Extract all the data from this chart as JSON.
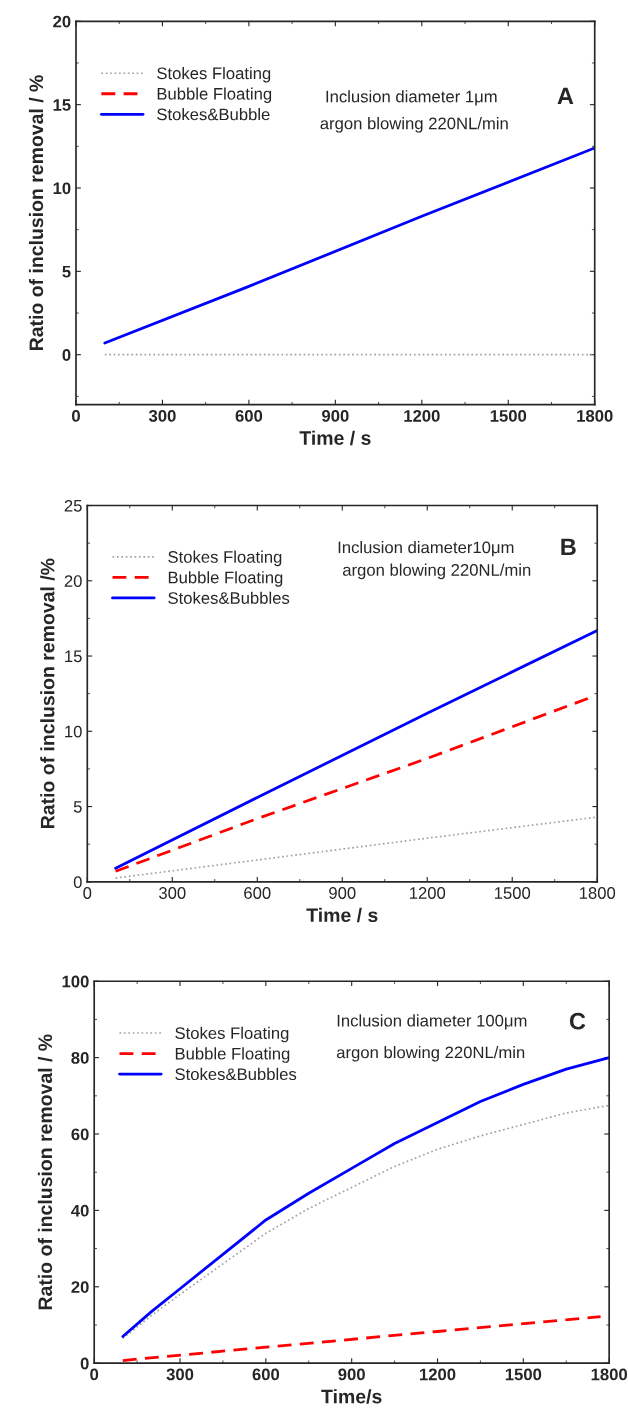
{
  "chart_data": [
    {
      "type": "line",
      "xlabel": "Time / s",
      "ylabel": "Ratio of inclusion removal / %",
      "xlim": [
        0,
        1800
      ],
      "xticks": [
        0,
        300,
        600,
        900,
        1200,
        1500,
        1800
      ],
      "ylim": [
        -3,
        20
      ],
      "yticks": [
        0,
        5,
        10,
        15,
        20
      ],
      "grid": false,
      "legend": "top left",
      "x": [
        100,
        600,
        1200,
        1800
      ],
      "series": [
        {
          "name": "Stokes Floating",
          "color": "#a0a0a0",
          "line_style": "dotted",
          "values": [
            0,
            0,
            0,
            0
          ]
        },
        {
          "name": "Bubble Floating",
          "color": "#ff0000",
          "line_style": "dashed",
          "values": [
            null,
            null,
            null,
            null
          ]
        },
        {
          "name": "Stokes&Bubble",
          "color": "#0000ff",
          "line_style": "solid",
          "values": [
            0.7,
            4.1,
            8.3,
            12.4
          ]
        }
      ],
      "annotations": [
        "Inclusion diameter 1μm",
        "argon blowing 220NL/min",
        "A"
      ]
    },
    {
      "type": "line",
      "xlabel": "Time / s",
      "ylabel": "Ratio of inclusion removal /%",
      "xlim": [
        0,
        1800
      ],
      "xticks": [
        0,
        300,
        600,
        900,
        1200,
        1500,
        1800
      ],
      "ylim": [
        0,
        25
      ],
      "yticks": [
        0,
        5,
        10,
        15,
        20,
        25
      ],
      "grid": false,
      "legend": "top left",
      "series": [
        {
          "name": "Stokes Floating",
          "color": "#a0a0a0",
          "line_style": "dotted",
          "x": [
            100,
            600,
            1200,
            1800
          ],
          "values": [
            0.25,
            1.45,
            2.9,
            4.3
          ]
        },
        {
          "name": "Bubble Floating",
          "color": "#ff0000",
          "line_style": "dashed",
          "x": [
            100,
            600,
            1200,
            1770
          ],
          "values": [
            0.7,
            4.2,
            8.2,
            12.2
          ]
        },
        {
          "name": "Stokes&Bubbles",
          "color": "#0000ff",
          "line_style": "solid",
          "x": [
            100,
            600,
            1200,
            1800
          ],
          "values": [
            0.9,
            5.6,
            11.2,
            16.7
          ]
        }
      ],
      "annotations": [
        "Inclusion diameter10μm",
        "argon blowing 220NL/min",
        "B"
      ]
    },
    {
      "type": "line",
      "xlabel": "Time/s",
      "ylabel": "Ratio of inclusion removal / %",
      "xlim": [
        0,
        1800
      ],
      "xticks": [
        0,
        300,
        600,
        900,
        1200,
        1500,
        1800
      ],
      "ylim": [
        0,
        100
      ],
      "yticks": [
        0,
        20,
        40,
        60,
        80,
        100
      ],
      "grid": false,
      "legend": "top left",
      "series": [
        {
          "name": "Stokes Floating",
          "color": "#a0a0a0",
          "line_style": "dotted",
          "x": [
            100,
            200,
            300,
            450,
            600,
            750,
            900,
            1050,
            1200,
            1350,
            1500,
            1650,
            1800
          ],
          "values": [
            6.5,
            12.5,
            18,
            26,
            34,
            40.5,
            46,
            51.5,
            56,
            59.5,
            62.5,
            65.5,
            67.5
          ]
        },
        {
          "name": "Bubble Floating",
          "color": "#ff0000",
          "line_style": "dashed",
          "x": [
            100,
            600,
            1200,
            1770
          ],
          "values": [
            0.7,
            4.2,
            8.3,
            12.2
          ]
        },
        {
          "name": "Stokes&Bubbles",
          "color": "#0000ff",
          "line_style": "solid",
          "x": [
            100,
            200,
            300,
            450,
            600,
            750,
            900,
            1050,
            1200,
            1350,
            1500,
            1650,
            1800
          ],
          "values": [
            7,
            13.5,
            19.5,
            28.5,
            37.5,
            44.5,
            51,
            57.5,
            63,
            68.5,
            73,
            77,
            80
          ]
        }
      ],
      "annotations": [
        "Inclusion diameter 100μm",
        "argon blowing 220NL/min",
        "C"
      ]
    }
  ]
}
